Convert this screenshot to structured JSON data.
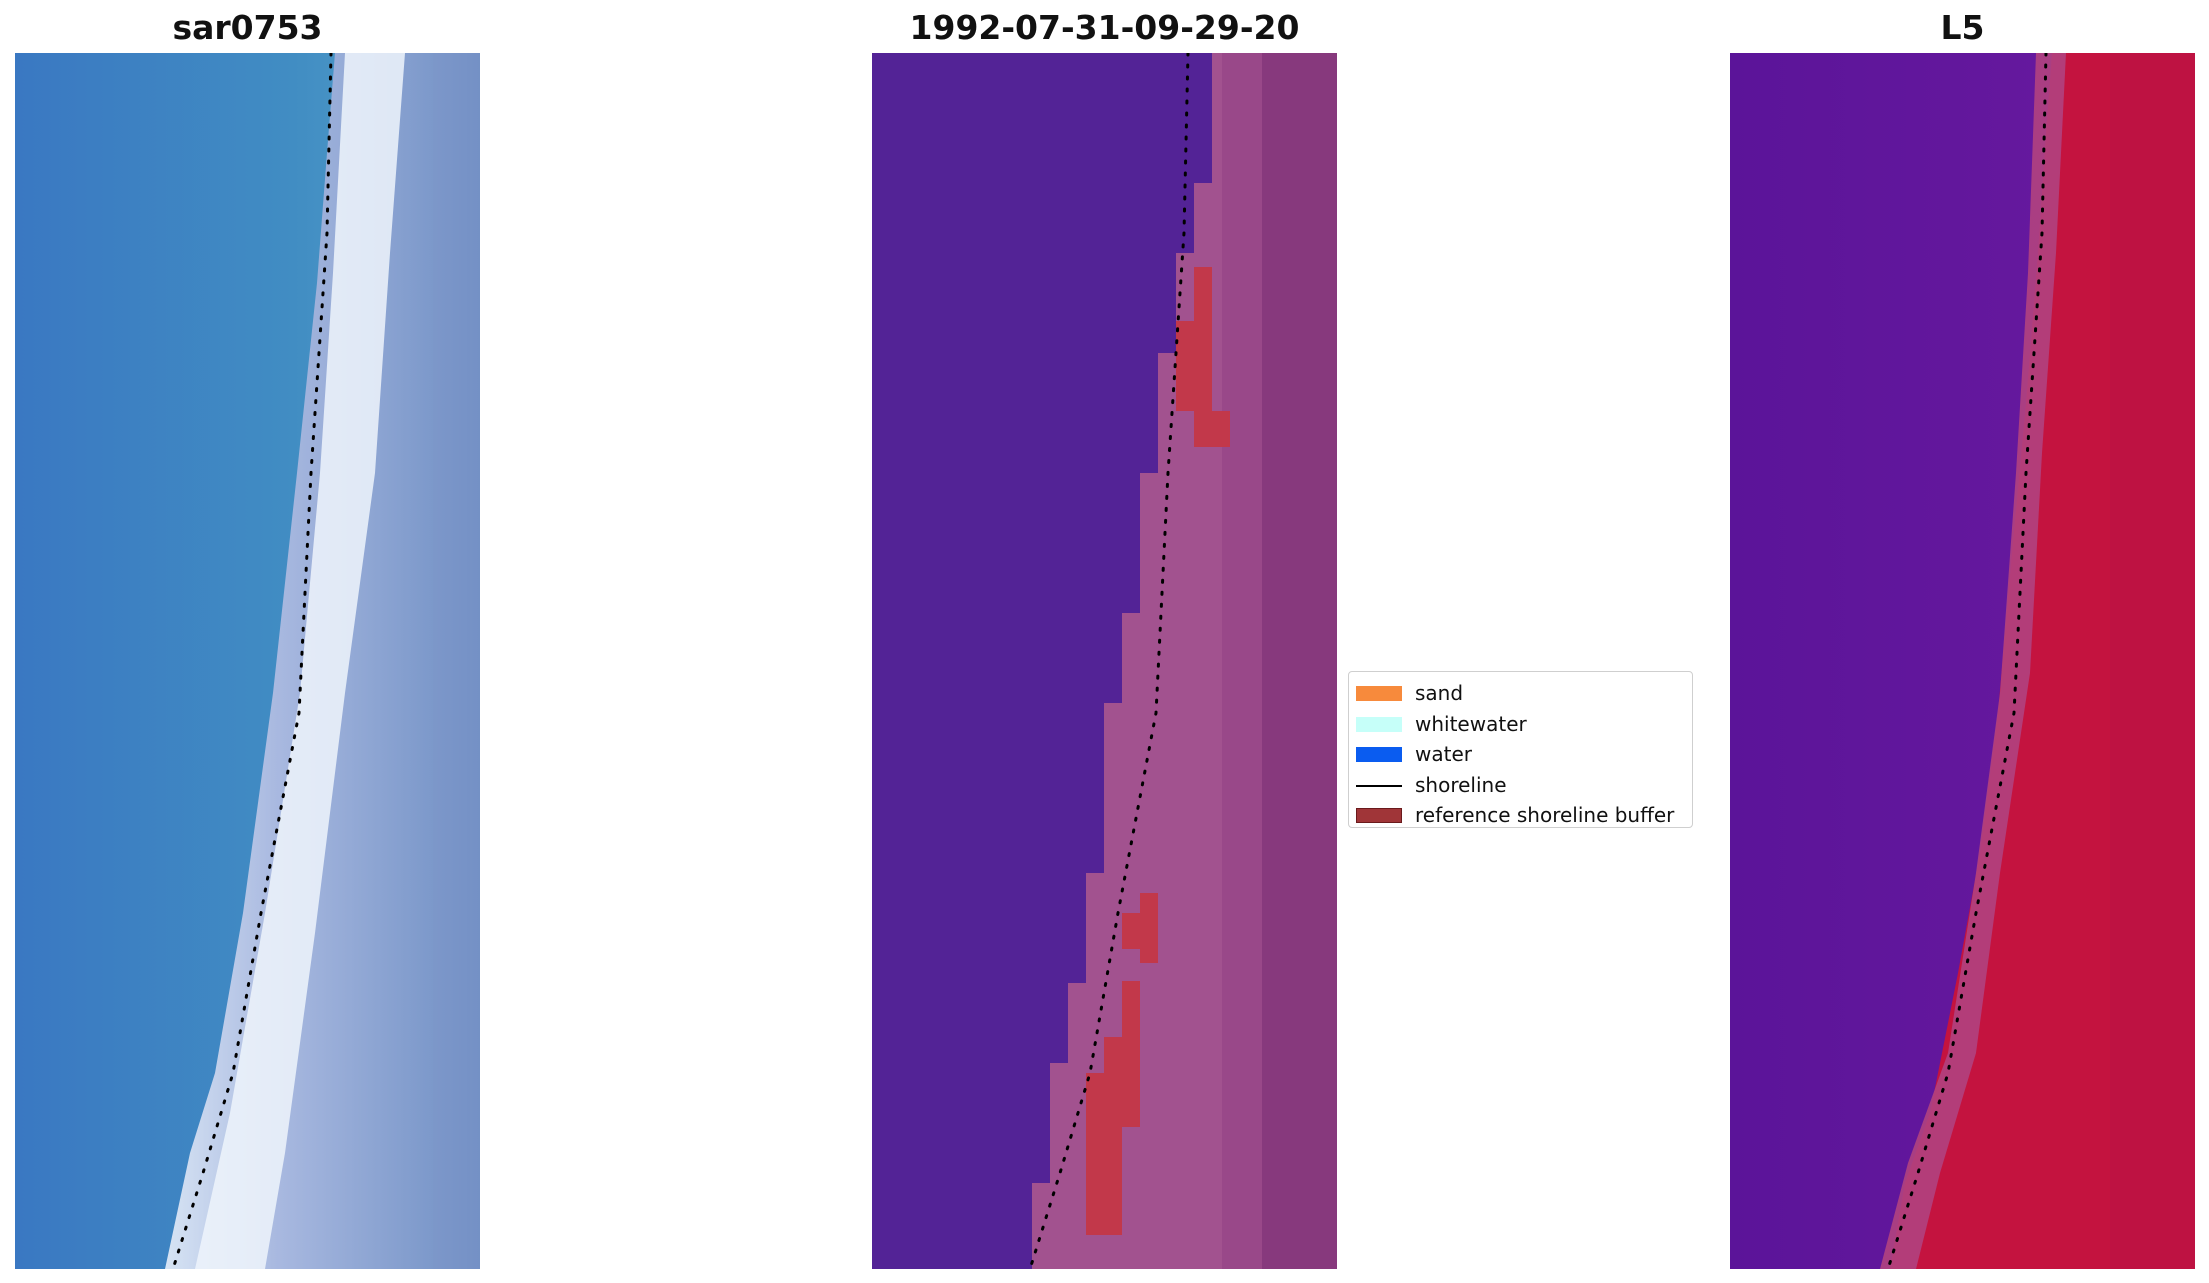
{
  "panels": [
    {
      "id": "rgb",
      "title": "sar0753"
    },
    {
      "id": "classified",
      "title": "1992-07-31-09-29-20"
    },
    {
      "id": "index",
      "title": "L5"
    }
  ],
  "legend": {
    "items": [
      {
        "label": "sand",
        "color": "#f78a3c",
        "kind": "patch"
      },
      {
        "label": "whitewater",
        "color": "#c6fff9",
        "kind": "patch"
      },
      {
        "label": "water",
        "color": "#0a5cf0",
        "kind": "patch"
      },
      {
        "label": "shoreline",
        "color": "#000000",
        "kind": "line"
      },
      {
        "label": "reference shoreline buffer",
        "color": "#a03538",
        "kind": "patch"
      }
    ]
  },
  "colors": {
    "water_rgb": "#3f85c4",
    "water_classified": "#532396",
    "land_classified": "#a2528f",
    "buffer": "#c2384a",
    "water_index": "#5e0f9b",
    "land_index": "#c4133f"
  }
}
